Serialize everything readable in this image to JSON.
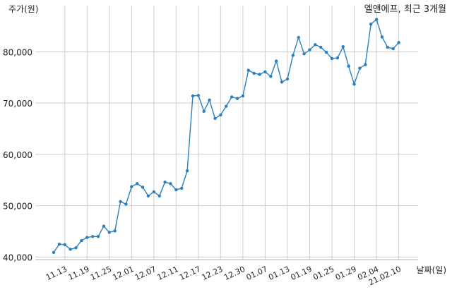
{
  "chart_data": {
    "type": "line",
    "title": "엘앤에프, 최근 3개월",
    "ylabel": "주가(원)",
    "xlabel": "날짜(일)",
    "ylim": [
      39500,
      89000
    ],
    "yticks": [
      40000,
      50000,
      60000,
      70000,
      80000
    ],
    "ytick_labels": [
      "40,000",
      "50,000",
      "60,000",
      "70,000",
      "80,000"
    ],
    "grid": true,
    "xtick_labels": [
      "11.13",
      "11.19",
      "11.25",
      "12.01",
      "12.07",
      "12.11",
      "12.17",
      "12.23",
      "12.30",
      "01.07",
      "01.13",
      "01.19",
      "01.25",
      "01.29",
      "02.04",
      "21.02.10"
    ],
    "xtick_indices": [
      2,
      6,
      10,
      14,
      18,
      22,
      26,
      30,
      34,
      38,
      42,
      46,
      50,
      54,
      58,
      62
    ],
    "series": [
      {
        "values": [
          40900,
          42500,
          42400,
          41500,
          41800,
          43200,
          43800,
          44000,
          44000,
          46000,
          44800,
          45100,
          50800,
          50300,
          53700,
          54300,
          53600,
          51900,
          52700,
          51900,
          54600,
          54300,
          53100,
          53400,
          56800,
          71400,
          71500,
          68400,
          70600,
          67000,
          67700,
          69400,
          71200,
          70900,
          71400,
          76400,
          75800,
          75600,
          76100,
          75200,
          78200,
          74100,
          74700,
          79300,
          82800,
          79600,
          80400,
          81400,
          80900,
          79900,
          78700,
          78800,
          81000,
          77200,
          73700,
          76800,
          77500,
          85400,
          86300,
          82900,
          80900,
          80600,
          81800
        ]
      }
    ]
  }
}
